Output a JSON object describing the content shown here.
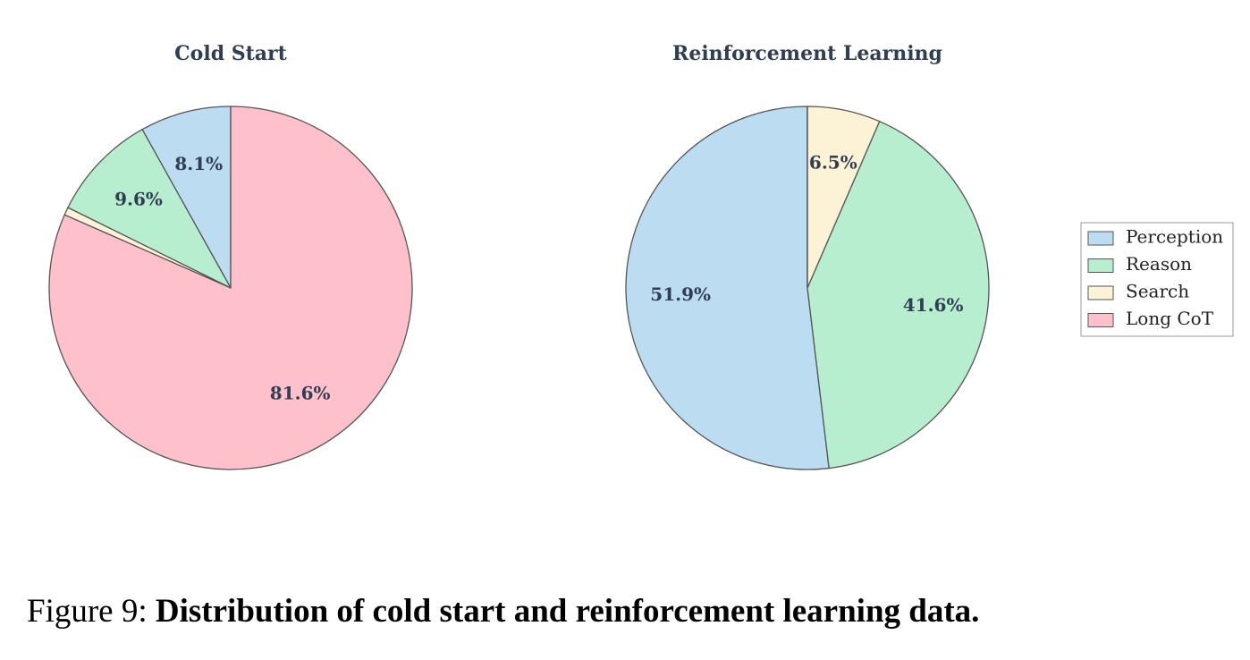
{
  "chart_data": [
    {
      "type": "pie",
      "title": "Cold Start",
      "categories": [
        "Perception",
        "Reason",
        "Search",
        "Long CoT"
      ],
      "values": [
        8.1,
        9.6,
        0.7,
        81.6
      ],
      "value_labels": [
        "8.1%",
        "9.6%",
        null,
        "81.6%"
      ],
      "colors": [
        "#bbdcf1",
        "#b7eecf",
        "#fcf3d6",
        "#fec1cb"
      ]
    },
    {
      "type": "pie",
      "title": "Reinforcement Learning",
      "categories": [
        "Perception",
        "Reason",
        "Search",
        "Long CoT"
      ],
      "values": [
        51.9,
        41.6,
        6.5,
        0
      ],
      "value_labels": [
        "51.9%",
        "41.6%",
        "6.5%",
        null
      ],
      "colors": [
        "#bbdcf1",
        "#b7eecf",
        "#fcf3d6",
        "#fec1cb"
      ]
    }
  ],
  "caption": {
    "label": "Figure 9:",
    "text": "Distribution of cold start and reinforcement learning data."
  }
}
